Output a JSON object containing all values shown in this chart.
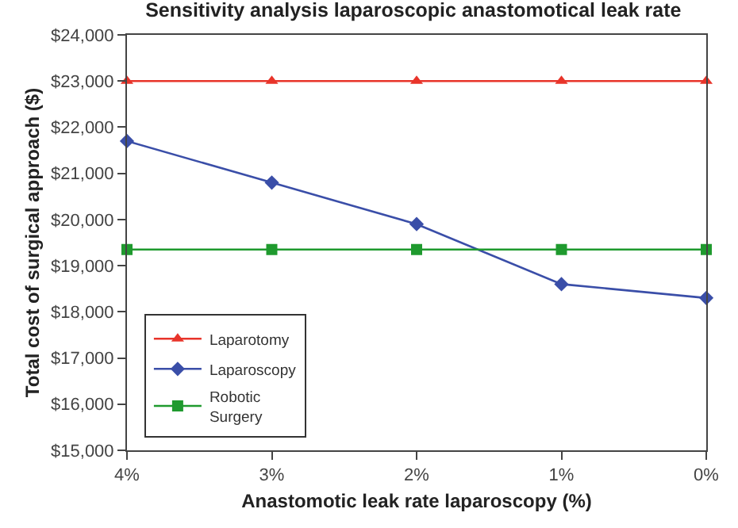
{
  "chart_data": {
    "type": "line",
    "title": "Sensitivity analysis laparoscopic anastomotical leak rate",
    "xlabel": "Anastomotic leak rate laparoscopy (%)",
    "ylabel": "Total cost of surgical approach ($)",
    "categories": [
      "4%",
      "3%",
      "2%",
      "1%",
      "0%"
    ],
    "series": [
      {
        "name": "Laparotomy",
        "color": "#e8342a",
        "marker": "triangle",
        "values": [
          23000,
          23000,
          23000,
          23000,
          23000
        ]
      },
      {
        "name": "Laparoscopy",
        "color": "#3a4ea8",
        "marker": "diamond",
        "values": [
          21700,
          20800,
          19900,
          18600,
          18300
        ]
      },
      {
        "name": "Robotic Surgery",
        "color": "#1f9a2e",
        "marker": "square",
        "values": [
          19350,
          19350,
          19350,
          19350,
          19350
        ]
      }
    ],
    "ylim": [
      15000,
      24000
    ],
    "yticks": [
      {
        "value": 15000,
        "label": "$15,000"
      },
      {
        "value": 16000,
        "label": "$16,000"
      },
      {
        "value": 17000,
        "label": "$17,000"
      },
      {
        "value": 18000,
        "label": "$18,000"
      },
      {
        "value": 19000,
        "label": "$19,000"
      },
      {
        "value": 20000,
        "label": "$20,000"
      },
      {
        "value": 21000,
        "label": "$21,000"
      },
      {
        "value": 22000,
        "label": "$22,000"
      },
      {
        "value": 23000,
        "label": "$23,000"
      },
      {
        "value": 24000,
        "label": "$24,000"
      }
    ],
    "legend": "bottom left",
    "line_style": "solid"
  }
}
